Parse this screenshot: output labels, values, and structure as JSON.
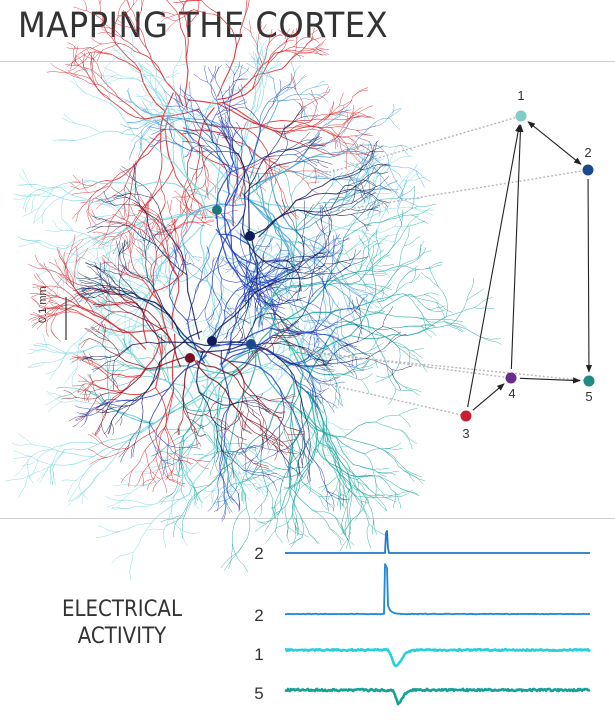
{
  "title": "MAPPING THE CORTEX",
  "scale_bar": "0.1 mm",
  "network": {
    "nodes": [
      {
        "label": "1",
        "color": "#7ecdc6"
      },
      {
        "label": "2",
        "color": "#1a4a8c"
      },
      {
        "label": "3",
        "color": "#c8202e"
      },
      {
        "label": "4",
        "color": "#6a2c8c"
      },
      {
        "label": "5",
        "color": "#1e8c86"
      }
    ],
    "connections": [
      {
        "from": "1",
        "to": "2",
        "bidirectional": true
      },
      {
        "from": "2",
        "to": "5"
      },
      {
        "from": "3",
        "to": "1"
      },
      {
        "from": "3",
        "to": "4"
      },
      {
        "from": "4",
        "to": "1"
      },
      {
        "from": "4",
        "to": "5"
      }
    ]
  },
  "activity": {
    "label_line1": "ELECTRICAL",
    "label_line2": "ACTIVITY",
    "traces": [
      {
        "label": "2",
        "color": "#1f78c8"
      },
      {
        "label": "2",
        "color": "#1f88d8"
      },
      {
        "label": "1",
        "color": "#2ad0d8"
      },
      {
        "label": "5",
        "color": "#18a098"
      }
    ]
  },
  "colors": {
    "red": "#d8262a",
    "dark_red": "#7a1020",
    "navy": "#0e1a5a",
    "blue": "#2040c0",
    "light_blue": "#4aa0d8",
    "cyan": "#7ad8e0",
    "teal": "#20a8a0",
    "purple": "#6a2c8c"
  }
}
